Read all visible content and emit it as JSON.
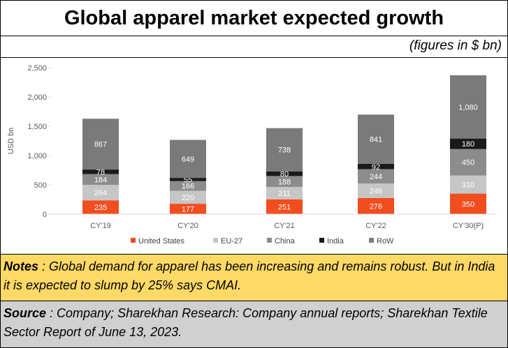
{
  "header": {
    "title": "Global apparel market expected growth"
  },
  "subtitle": "(figures in $ bn)",
  "chart_data": {
    "type": "bar",
    "stacked": true,
    "categories": [
      "CY'19",
      "CY'20",
      "CY'21",
      "CY'22",
      "CY'30(P)"
    ],
    "ylabel": "USD bn",
    "ylim": [
      0,
      2500
    ],
    "yticks": [
      0,
      500,
      1000,
      1500,
      2000,
      2500
    ],
    "ytick_labels": [
      "0",
      "500",
      "1,000",
      "1,500",
      "2,000",
      "2,500"
    ],
    "legend_position": "bottom",
    "grid": false,
    "series": [
      {
        "name": "United States",
        "color": "#f14d1e",
        "label_color": "#ffffff",
        "values": [
          235,
          177,
          251,
          276,
          350
        ]
      },
      {
        "name": "EU-27",
        "color": "#c6c6c6",
        "label_color": "#ffffff",
        "values": [
          264,
          220,
          211,
          246,
          310
        ]
      },
      {
        "name": "China",
        "color": "#8c8c8c",
        "label_color": "#ffffff",
        "values": [
          184,
          166,
          188,
          244,
          450
        ]
      },
      {
        "name": "India",
        "color": "#1a1a1a",
        "label_color": "#ffffff",
        "values": [
          78,
          55,
          80,
          92,
          180
        ]
      },
      {
        "name": "RoW",
        "color": "#7a7a7a",
        "label_color": "#ffffff",
        "values": [
          867,
          649,
          738,
          841,
          1080
        ]
      }
    ]
  },
  "notes": {
    "label": "Notes",
    "text": " : Global demand for apparel has been increasing and remains robust.  But in India it is expected to slump by 25% says CMAI."
  },
  "source": {
    "label": "Source",
    "text": " : Company; Sharekhan Research: Company annual reports; Sharekhan Textile Sector Report of June 13, 2023."
  }
}
